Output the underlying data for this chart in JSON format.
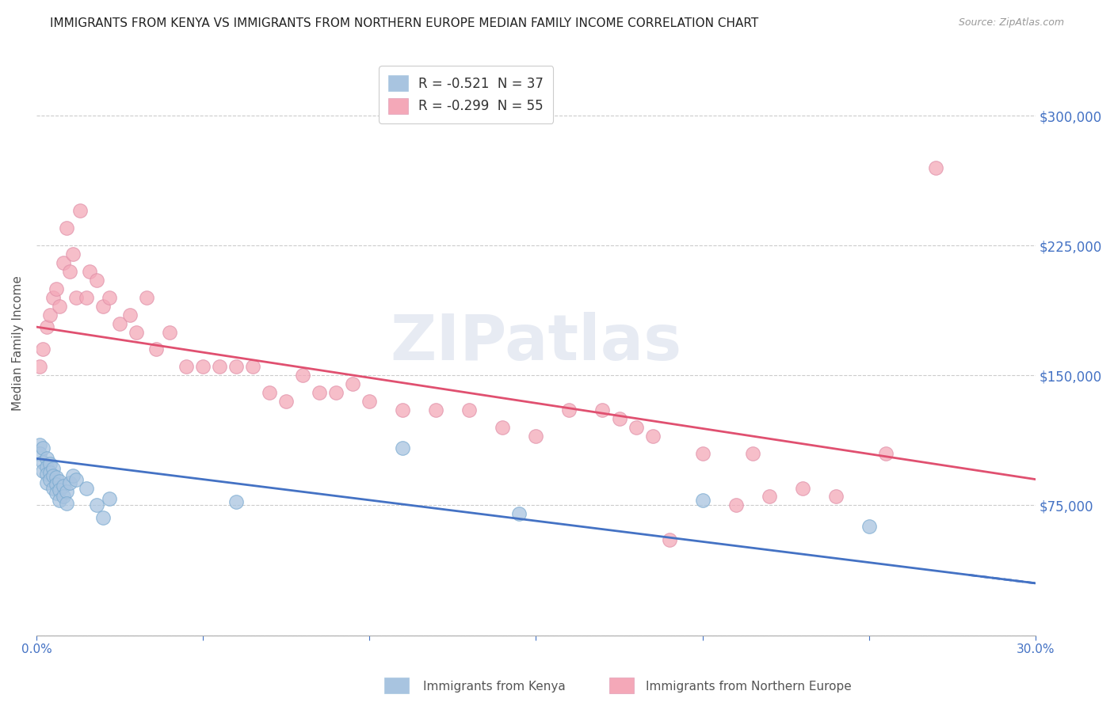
{
  "title": "IMMIGRANTS FROM KENYA VS IMMIGRANTS FROM NORTHERN EUROPE MEDIAN FAMILY INCOME CORRELATION CHART",
  "source": "Source: ZipAtlas.com",
  "ylabel": "Median Family Income",
  "xlim": [
    0.0,
    0.3
  ],
  "ylim": [
    0,
    337500
  ],
  "yticks": [
    0,
    75000,
    150000,
    225000,
    300000
  ],
  "ytick_labels": [
    "",
    "$75,000",
    "$150,000",
    "$225,000",
    "$300,000"
  ],
  "xticks": [
    0.0,
    0.05,
    0.1,
    0.15,
    0.2,
    0.25,
    0.3
  ],
  "xtick_labels": [
    "0.0%",
    "",
    "",
    "",
    "",
    "",
    "30.0%"
  ],
  "legend_r1": "R = -0.521  N = 37",
  "legend_r2": "R = -0.299  N = 55",
  "color_kenya": "#a8c4e0",
  "color_north_europe": "#f4a8b8",
  "line_color_kenya": "#4472c4",
  "line_color_north_europe": "#e05070",
  "background_color": "#ffffff",
  "kenya_scatter_x": [
    0.001,
    0.001,
    0.002,
    0.002,
    0.002,
    0.003,
    0.003,
    0.003,
    0.003,
    0.004,
    0.004,
    0.004,
    0.005,
    0.005,
    0.005,
    0.006,
    0.006,
    0.006,
    0.007,
    0.007,
    0.007,
    0.008,
    0.008,
    0.009,
    0.009,
    0.01,
    0.011,
    0.012,
    0.015,
    0.018,
    0.02,
    0.022,
    0.06,
    0.11,
    0.145,
    0.2,
    0.25
  ],
  "kenya_scatter_y": [
    110000,
    105000,
    108000,
    100000,
    95000,
    102000,
    97000,
    93000,
    88000,
    99000,
    94000,
    90000,
    96000,
    92000,
    85000,
    91000,
    87000,
    82000,
    89000,
    84000,
    78000,
    86000,
    80000,
    83000,
    76000,
    88000,
    92000,
    90000,
    85000,
    75000,
    68000,
    79000,
    77000,
    108000,
    70000,
    78000,
    63000
  ],
  "north_europe_scatter_x": [
    0.001,
    0.002,
    0.003,
    0.004,
    0.005,
    0.006,
    0.007,
    0.008,
    0.009,
    0.01,
    0.011,
    0.012,
    0.013,
    0.015,
    0.016,
    0.018,
    0.02,
    0.022,
    0.025,
    0.028,
    0.03,
    0.033,
    0.036,
    0.04,
    0.045,
    0.05,
    0.055,
    0.06,
    0.065,
    0.07,
    0.075,
    0.08,
    0.085,
    0.09,
    0.095,
    0.1,
    0.11,
    0.12,
    0.13,
    0.14,
    0.15,
    0.16,
    0.17,
    0.175,
    0.18,
    0.185,
    0.19,
    0.2,
    0.21,
    0.215,
    0.22,
    0.23,
    0.24,
    0.255,
    0.27
  ],
  "north_europe_scatter_y": [
    155000,
    165000,
    178000,
    185000,
    195000,
    200000,
    190000,
    215000,
    235000,
    210000,
    220000,
    195000,
    245000,
    195000,
    210000,
    205000,
    190000,
    195000,
    180000,
    185000,
    175000,
    195000,
    165000,
    175000,
    155000,
    155000,
    155000,
    155000,
    155000,
    140000,
    135000,
    150000,
    140000,
    140000,
    145000,
    135000,
    130000,
    130000,
    130000,
    120000,
    115000,
    130000,
    130000,
    125000,
    120000,
    115000,
    55000,
    105000,
    75000,
    105000,
    80000,
    85000,
    80000,
    105000,
    270000
  ]
}
